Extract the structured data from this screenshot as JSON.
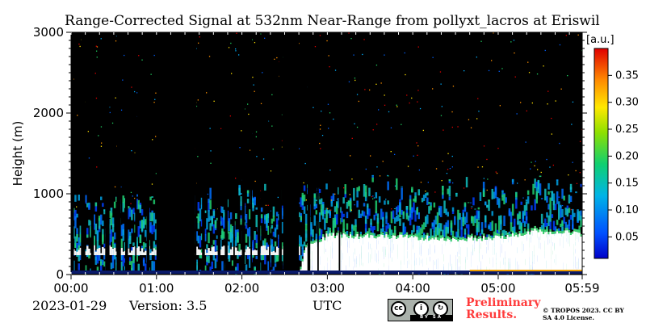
{
  "chart_data": {
    "type": "heatmap",
    "title": "Range-Corrected Signal at 532nm Near-Range from pollyxt_lacros at Eriswil",
    "xlabel": "UTC",
    "ylabel": "Height (m)",
    "x_ticks": [
      "00:00",
      "01:00",
      "02:00",
      "03:00",
      "04:00",
      "05:00",
      "05:59"
    ],
    "y_ticks": [
      "0",
      "1000",
      "2000",
      "3000"
    ],
    "xlim_minutes": [
      0,
      359
    ],
    "ylim_m": [
      0,
      3000
    ],
    "colorbar": {
      "label": "[a.u.]",
      "range": [
        0.01,
        0.4
      ],
      "ticks": [
        "0.05",
        "0.10",
        "0.15",
        "0.20",
        "0.25",
        "0.30",
        "0.35"
      ],
      "colormap": "jet"
    },
    "signal_profile": {
      "description_units": "time in minutes UTC, heights in m",
      "gap_segments_minutes": [
        [
          0,
          2
        ],
        [
          7,
          10
        ],
        [
          14,
          16
        ],
        [
          24,
          27
        ],
        [
          32,
          35
        ],
        [
          38,
          40
        ],
        [
          45,
          46
        ],
        [
          53,
          55
        ],
        [
          61,
          62
        ],
        [
          68,
          70
        ],
        [
          73,
          75
        ],
        [
          81,
          83
        ],
        [
          87,
          88
        ],
        [
          92,
          94
        ],
        [
          103,
          105
        ],
        [
          108,
          110
        ],
        [
          114,
          115
        ],
        [
          120,
          122
        ],
        [
          126,
          127
        ],
        [
          131,
          133
        ],
        [
          139,
          140
        ],
        [
          146,
          148
        ],
        [
          153,
          154
        ],
        [
          166,
          168
        ],
        [
          173,
          174
        ],
        [
          188,
          189
        ]
      ],
      "dark_block_minutes": [
        [
          60,
          87
        ],
        [
          149,
          160
        ]
      ],
      "saturated_layer_top_m": [
        [
          160,
          0
        ],
        [
          164,
          330
        ],
        [
          180,
          500
        ],
        [
          220,
          480
        ],
        [
          270,
          450
        ],
        [
          300,
          470
        ],
        [
          330,
          560
        ],
        [
          359,
          500
        ]
      ],
      "noise_layer_top_m": [
        [
          0,
          850
        ],
        [
          60,
          900
        ],
        [
          150,
          950
        ],
        [
          200,
          1050
        ],
        [
          260,
          1000
        ],
        [
          300,
          1050
        ],
        [
          359,
          1000
        ]
      ]
    }
  },
  "footer": {
    "date": "2023-01-29",
    "version": "Version: 3.5",
    "preliminary": "Preliminary Results.",
    "copyright": "© TROPOS 2023. CC BY SA 4.0 License.",
    "cc_badge_text": "BY SA"
  },
  "colors": {
    "background_plot": "#000000",
    "saturated": "#ffffff",
    "preliminary": "#ff3b3b"
  }
}
